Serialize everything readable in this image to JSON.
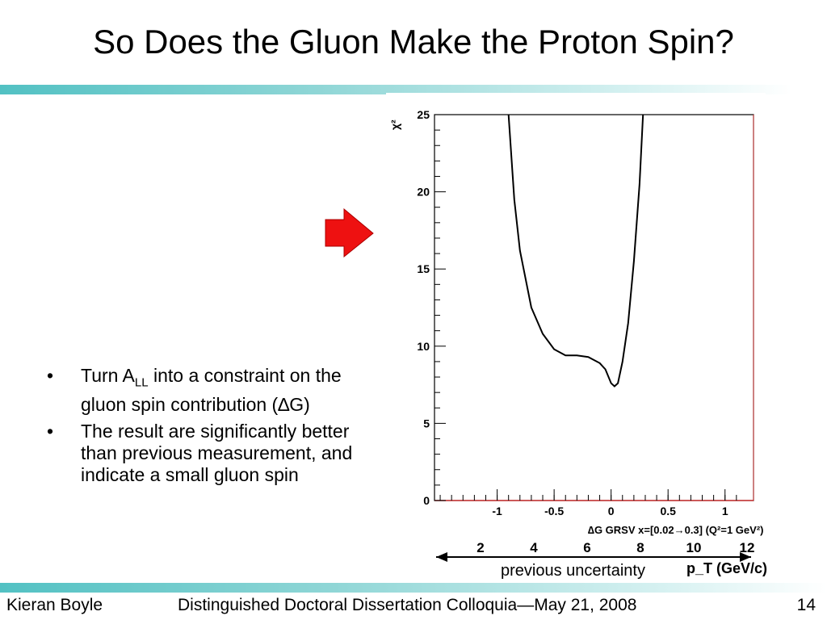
{
  "slide": {
    "title": "So Does the Gluon Make the Proton Spin?",
    "bullets": [
      {
        "pre": "Turn A",
        "sub": "LL",
        "post": " into a constraint on the gluon spin contribution (∆G)"
      },
      {
        "text": "The result are significantly better than previous measurement, and  indicate a small gluon spin"
      }
    ]
  },
  "chart_data": {
    "type": "line",
    "title": "",
    "ylabel": "χ²",
    "xlabel": "∆G GRSV x=[0.02→0.3] (Q²=1 GeV²)",
    "xlim": [
      -1.55,
      1.25
    ],
    "ylim": [
      0,
      25
    ],
    "x_ticks": [
      -1,
      -0.5,
      0,
      0.5,
      1
    ],
    "x_tick_labels": [
      "-1",
      "-0.5",
      "0",
      "0.5",
      "1"
    ],
    "y_ticks": [
      0,
      5,
      10,
      15,
      20,
      25
    ],
    "y_tick_labels": [
      "0",
      "5",
      "10",
      "15",
      "20",
      "25"
    ],
    "series": [
      {
        "values_x": [
          -0.9,
          -0.85,
          -0.8,
          -0.7,
          -0.6,
          -0.5,
          -0.4,
          -0.3,
          -0.2,
          -0.1,
          -0.05,
          0.0,
          0.03,
          0.06,
          0.1,
          0.15,
          0.2,
          0.25,
          0.28
        ],
        "values_y": [
          25,
          19.5,
          16.2,
          12.5,
          10.8,
          9.8,
          9.4,
          9.4,
          9.3,
          8.9,
          8.5,
          7.6,
          7.4,
          7.6,
          9.0,
          11.5,
          15.5,
          20.5,
          25
        ]
      }
    ],
    "pt_axis": {
      "label": "p_T (GeV/c)",
      "tick_labels": [
        "2",
        "4",
        "6",
        "8",
        "10",
        "12"
      ]
    }
  },
  "annotation": {
    "previous_uncertainty": "previous uncertainty"
  },
  "footer": {
    "author": "Kieran Boyle",
    "event": "Distinguished Doctoral Dissertation Colloquia—May 21, 2008",
    "page": "14"
  }
}
